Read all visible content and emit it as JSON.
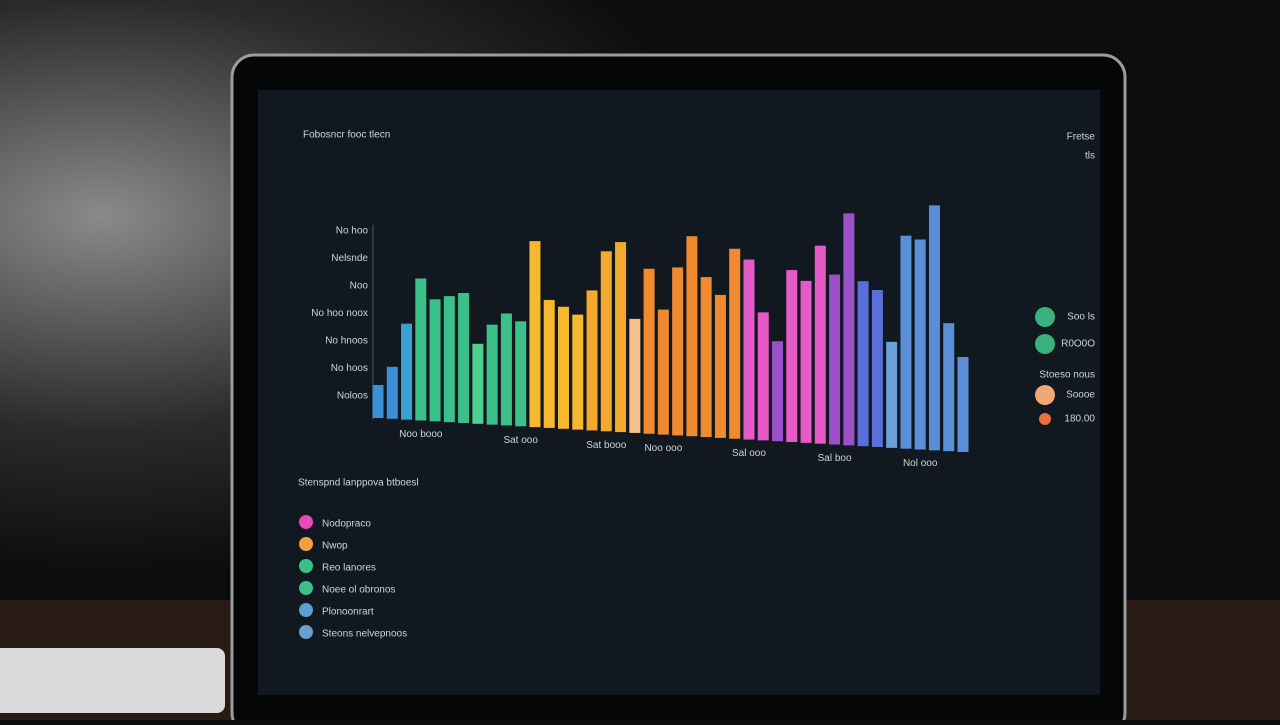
{
  "chart_data": {
    "type": "bar",
    "title": "Fobosncr fooc tlecn",
    "corner_text": [
      "Fretse",
      "tls"
    ],
    "y_labels": [
      "No hoo",
      "Nelsnde",
      "Noo",
      "No hoo noox",
      "No hnoos",
      "No hoos",
      "Noloos"
    ],
    "categories": [
      null,
      null,
      null,
      "Noo booo",
      null,
      null,
      null,
      null,
      null,
      null,
      "Sat ooo",
      null,
      null,
      null,
      null,
      null,
      "Sat booo",
      null,
      null,
      null,
      "Noo ooo",
      null,
      null,
      null,
      null,
      null,
      "Sal ooo",
      null,
      null,
      null,
      null,
      null,
      "Sal boo",
      null,
      null,
      null,
      null,
      null,
      "Nol ooo",
      null,
      null,
      null
    ],
    "values": [
      33,
      52,
      96,
      142,
      122,
      126,
      130,
      80,
      100,
      112,
      105,
      186,
      128,
      122,
      115,
      140,
      180,
      190,
      114,
      165,
      125,
      168,
      200,
      160,
      143,
      190,
      180,
      128,
      100,
      172,
      162,
      198,
      170,
      232,
      165,
      157,
      106,
      213,
      210,
      245,
      128,
      95
    ],
    "colors": [
      "#3a8fd6",
      "#3a8fd6",
      "#3aa0d0",
      "#3cc08a",
      "#3cc08a",
      "#3cc08a",
      "#3cc08a",
      "#4fd08f",
      "#3cc08a",
      "#3cc08a",
      "#3cc08a",
      "#f5b82e",
      "#f5b82e",
      "#f5b82e",
      "#f5b82e",
      "#f5a82e",
      "#f5a82e",
      "#f5a82e",
      "#f7c08a",
      "#f08a2e",
      "#f08a2e",
      "#f08a2e",
      "#f08a2e",
      "#f08a2e",
      "#f08a2e",
      "#f08a2e",
      "#e65ac8",
      "#e65ac8",
      "#9b4fc8",
      "#e65ac8",
      "#e65ac8",
      "#e65ac8",
      "#9b4fc8",
      "#9b4fc8",
      "#5a6fd8",
      "#5a6fd8",
      "#6a9fd8",
      "#5a8fd8",
      "#5a8fd8",
      "#5a8fd8",
      "#5a8fd8",
      "#5a8fd8"
    ],
    "ylim": [
      0,
      250
    ],
    "right_legend": [
      {
        "name": "Soo ls",
        "color": "#3cb07a"
      },
      {
        "name": "R0O0O",
        "color": "#3cb07a"
      },
      {
        "name": "Stoeso nous",
        "color": null
      },
      {
        "name": "Soooe",
        "color": "#f0a878"
      },
      {
        "name": "180.00",
        "color": "#e8703a"
      }
    ],
    "legend_title": "Stenspnd lanppova btboesl",
    "legend": [
      {
        "name": "Nodopraco",
        "color": "#e84ab8"
      },
      {
        "name": "Nwop",
        "color": "#f0a040"
      },
      {
        "name": "Reo lanores",
        "color": "#3cc08a"
      },
      {
        "name": "Noee ol obronos",
        "color": "#3cc08a"
      },
      {
        "name": "Plonoonrart",
        "color": "#5a9fd0"
      },
      {
        "name": "Steons nelvepnoos",
        "color": "#6a9fd0"
      }
    ]
  }
}
